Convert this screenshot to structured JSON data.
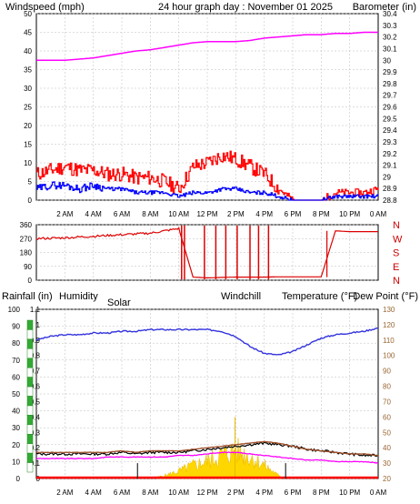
{
  "header": {
    "left_title": "Windspeed (mph)",
    "center_title": "24 hour graph day : November 01 2025",
    "right_title": "Barometer (in)"
  },
  "colors": {
    "wind_gust": "#ff0000",
    "wind_avg": "#0000ff",
    "barometer": "#ff00ff",
    "direction": "#dd0000",
    "humidity": "#3333dd",
    "temperature": "#a0522d",
    "dewpoint": "#ff00ff",
    "windchill": "#000000",
    "solar": "#ffd700",
    "rain": "#ff0000",
    "grid": "#bbbbbb",
    "frame": "#000000"
  },
  "time_labels": [
    "2 AM",
    "4 AM",
    "6 AM",
    "8 AM",
    "10 AM",
    "12 PM",
    "2 PM",
    "4 PM",
    "6 PM",
    "8 PM",
    "10 PM",
    "0 AM"
  ],
  "panels": {
    "wind": {
      "left_axis_ticks": [
        "50",
        "45",
        "40",
        "35",
        "30",
        "25",
        "20",
        "15",
        "10",
        "5",
        "0"
      ],
      "right_axis_ticks": [
        "30.4",
        "30.3",
        "30.2",
        "30.1",
        "30",
        "29.9",
        "29.8",
        "29.7",
        "29.6",
        "29.5",
        "29.4",
        "29.3",
        "29.2",
        "29.1",
        "29",
        "28.9",
        "28.8"
      ],
      "ylim_left": [
        0,
        50
      ],
      "ylim_right": [
        28.8,
        30.4
      ]
    },
    "direction": {
      "left_axis_ticks": [
        "360",
        "270",
        "180",
        "90",
        "0"
      ],
      "compass_labels": [
        "N",
        "W",
        "S",
        "E",
        "N"
      ],
      "ylim": [
        0,
        360
      ]
    },
    "multi": {
      "legend": {
        "rainfall": "Rainfall (in)",
        "humidity": "Humidity",
        "solar": "Solar",
        "windchill": "Windchill",
        "temperature": "Temperature (°F)",
        "dewpoint": "Dew Point (°F)"
      },
      "humidity_ticks": [
        "100",
        "90",
        "80",
        "70",
        "60",
        "50",
        "40",
        "30",
        "20",
        "10",
        "0"
      ],
      "rain_ticks": [
        "1.1",
        "1",
        "0.9",
        "0.8",
        "0.7",
        "0.6",
        "0.5",
        "0.4",
        "0.3",
        "0.2",
        "0.1",
        "0"
      ],
      "temp_ticks": [
        "130",
        "120",
        "110",
        "100",
        "90",
        "80",
        "70",
        "60",
        "50",
        "40",
        "30",
        "20"
      ],
      "ylim_humidity": [
        0,
        100
      ],
      "ylim_rain": [
        0,
        1.1
      ],
      "ylim_temp": [
        20,
        130
      ]
    }
  },
  "chart_data": [
    {
      "type": "line",
      "xlabel": "",
      "x_hours": [
        0,
        1,
        2,
        3,
        4,
        5,
        6,
        7,
        8,
        9,
        10,
        11,
        12,
        13,
        14,
        15,
        16,
        17,
        18,
        19,
        20,
        21,
        22,
        23,
        24
      ],
      "ylabel": "Windspeed (mph)",
      "ylabel_right": "Barometer (in)",
      "ylim": [
        0,
        50
      ],
      "ylim_right": [
        28.8,
        30.4
      ],
      "series": [
        {
          "name": "Barometer (in)",
          "axis": "right",
          "values": [
            30.0,
            30.0,
            30.0,
            30.01,
            30.02,
            30.04,
            30.06,
            30.08,
            30.09,
            30.11,
            30.13,
            30.15,
            30.16,
            30.16,
            30.16,
            30.17,
            30.19,
            30.2,
            30.21,
            30.22,
            30.22,
            30.23,
            30.23,
            30.24,
            30.24
          ]
        },
        {
          "name": "Wind gust",
          "axis": "left",
          "values": [
            7,
            8,
            9,
            8,
            8,
            7,
            7,
            6,
            6,
            5,
            3,
            9,
            10,
            12,
            11,
            9,
            7,
            3,
            0,
            0,
            0,
            2,
            2,
            2,
            3
          ]
        },
        {
          "name": "Wind average",
          "axis": "left",
          "values": [
            3,
            4,
            4,
            3,
            4,
            3,
            3,
            2,
            2,
            2,
            1,
            2,
            2,
            3,
            3,
            2,
            2,
            1,
            0,
            0,
            0,
            1,
            1,
            1,
            1
          ]
        }
      ]
    },
    {
      "type": "line",
      "ylabel": "Wind direction",
      "x_hours": [
        0,
        1,
        2,
        3,
        4,
        5,
        6,
        7,
        8,
        9,
        10,
        11,
        12,
        13,
        14,
        15,
        16,
        17,
        18,
        19,
        20,
        21,
        22,
        23,
        24
      ],
      "ylim": [
        0,
        360
      ],
      "series": [
        {
          "name": "Direction",
          "values": [
            270,
            272,
            275,
            280,
            285,
            290,
            295,
            300,
            305,
            320,
            335,
            20,
            15,
            18,
            20,
            20,
            20,
            22,
            22,
            22,
            22,
            320,
            315,
            315,
            315
          ]
        }
      ]
    },
    {
      "type": "line",
      "x_hours": [
        0,
        1,
        2,
        3,
        4,
        5,
        6,
        7,
        8,
        9,
        10,
        11,
        12,
        13,
        14,
        15,
        16,
        17,
        18,
        19,
        20,
        21,
        22,
        23,
        24
      ],
      "ylim_humidity": [
        0,
        100
      ],
      "ylim_temp": [
        20,
        130
      ],
      "ylim_rain": [
        0,
        1.1
      ],
      "series": [
        {
          "name": "Humidity",
          "axis": "humidity",
          "values": [
            82,
            84,
            85,
            85,
            86,
            86,
            87,
            87,
            88,
            88,
            88,
            88,
            88,
            87,
            84,
            78,
            74,
            73,
            75,
            79,
            83,
            85,
            86,
            87,
            89
          ]
        },
        {
          "name": "Temperature (°F)",
          "axis": "temp",
          "values": [
            37,
            37,
            37,
            37,
            37,
            37,
            38,
            37,
            38,
            38,
            38,
            39,
            40,
            41,
            42,
            43,
            44,
            43,
            41,
            39,
            38,
            37,
            36,
            36,
            35
          ]
        },
        {
          "name": "Dew Point (°F)",
          "axis": "temp",
          "values": [
            33,
            33,
            33,
            33,
            33,
            34,
            34,
            34,
            34,
            34,
            35,
            35,
            36,
            37,
            37,
            36,
            35,
            34,
            33,
            32,
            32,
            31,
            31,
            31,
            30
          ]
        },
        {
          "name": "Windchill",
          "axis": "temp",
          "values": [
            36,
            36,
            36,
            36,
            36,
            36,
            37,
            36,
            37,
            37,
            37,
            38,
            39,
            40,
            41,
            42,
            43,
            42,
            41,
            39,
            38,
            37,
            36,
            35,
            35
          ]
        },
        {
          "name": "Solar",
          "axis": "temp",
          "values": [
            0,
            0,
            0,
            0,
            0,
            0,
            0,
            0,
            0,
            2,
            5,
            9,
            12,
            16,
            19,
            15,
            9,
            2,
            0,
            0,
            0,
            0,
            0,
            0,
            0
          ]
        },
        {
          "name": "Rainfall (in)",
          "axis": "rain",
          "values": [
            0,
            0,
            0,
            0,
            0,
            0,
            0,
            0,
            0,
            0,
            0,
            0,
            0,
            0,
            0,
            0,
            0,
            0,
            0,
            0,
            0,
            0,
            0,
            0,
            0
          ]
        }
      ]
    }
  ]
}
